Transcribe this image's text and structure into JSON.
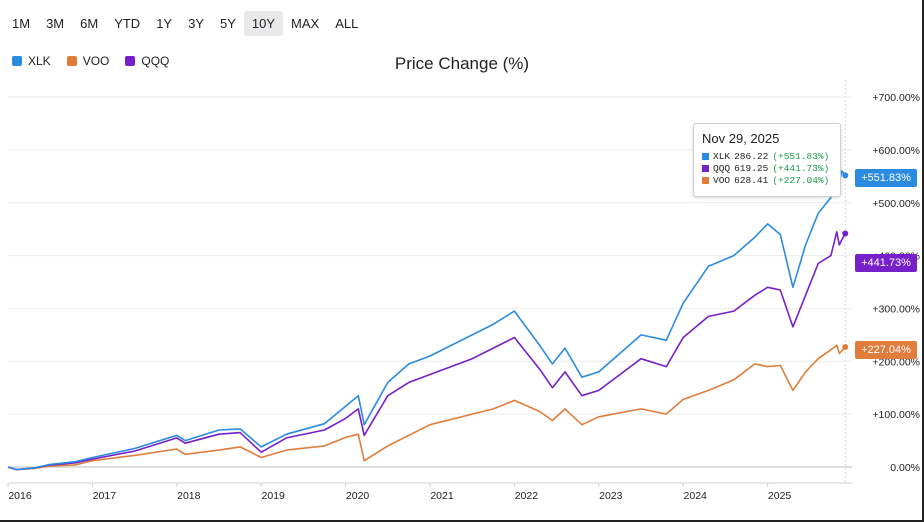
{
  "range_buttons": [
    "1M",
    "3M",
    "6M",
    "YTD",
    "1Y",
    "3Y",
    "5Y",
    "10Y",
    "MAX",
    "ALL"
  ],
  "active_range": "10Y",
  "legend": [
    {
      "name": "XLK",
      "color": "#2a8be0"
    },
    {
      "name": "VOO",
      "color": "#e07d3c"
    },
    {
      "name": "QQQ",
      "color": "#7520c8"
    }
  ],
  "tooltip": {
    "date": "Nov 29, 2025",
    "rows": [
      {
        "ticker": "XLK",
        "price": "286.22",
        "change": "(+551.83%)",
        "color": "#2a8be0"
      },
      {
        "ticker": "QQQ",
        "price": "619.25",
        "change": "(+441.73%)",
        "color": "#7520c8"
      },
      {
        "ticker": "VOO",
        "price": "628.41",
        "change": "(+227.04%)",
        "color": "#e07d3c"
      }
    ]
  },
  "badges": [
    {
      "label": "+551.83%",
      "color": "#2a8be0"
    },
    {
      "label": "+441.73%",
      "color": "#7520c8"
    },
    {
      "label": "+227.04%",
      "color": "#e07d3c"
    }
  ],
  "chart_data": {
    "type": "line",
    "title": "Price Change (%)",
    "xlabel": "",
    "ylabel": "",
    "ylim": [
      -20,
      720
    ],
    "xlim": [
      2016.0,
      2026.0
    ],
    "y_ticks": [
      0,
      100,
      200,
      300,
      400,
      500,
      600,
      700
    ],
    "y_tick_labels": [
      "0.00%",
      "+100.00%",
      "+200.00%",
      "+300.00%",
      "+400.00%",
      "+500.00%",
      "+600.00%",
      "+700.00%"
    ],
    "x_ticks": [
      2016,
      2017,
      2018,
      2019,
      2020,
      2021,
      2022,
      2023,
      2024,
      2025
    ],
    "x_tick_labels": [
      "2016",
      "2017",
      "2018",
      "2019",
      "2020",
      "2021",
      "2022",
      "2023",
      "2024",
      "2025"
    ],
    "series": [
      {
        "name": "VOO",
        "color": "#e07d3c",
        "points": [
          [
            2016.0,
            0
          ],
          [
            2016.1,
            -5
          ],
          [
            2016.3,
            -3
          ],
          [
            2016.5,
            2
          ],
          [
            2016.8,
            4
          ],
          [
            2017.0,
            12
          ],
          [
            2017.5,
            22
          ],
          [
            2018.0,
            34
          ],
          [
            2018.1,
            24
          ],
          [
            2018.5,
            32
          ],
          [
            2018.75,
            38
          ],
          [
            2019.0,
            18
          ],
          [
            2019.3,
            32
          ],
          [
            2019.75,
            40
          ],
          [
            2020.0,
            56
          ],
          [
            2020.15,
            62
          ],
          [
            2020.22,
            12
          ],
          [
            2020.5,
            40
          ],
          [
            2020.75,
            60
          ],
          [
            2021.0,
            80
          ],
          [
            2021.5,
            100
          ],
          [
            2021.75,
            110
          ],
          [
            2022.0,
            126
          ],
          [
            2022.3,
            105
          ],
          [
            2022.45,
            88
          ],
          [
            2022.6,
            110
          ],
          [
            2022.8,
            80
          ],
          [
            2023.0,
            95
          ],
          [
            2023.5,
            110
          ],
          [
            2023.8,
            100
          ],
          [
            2024.0,
            128
          ],
          [
            2024.3,
            145
          ],
          [
            2024.6,
            165
          ],
          [
            2024.85,
            195
          ],
          [
            2025.0,
            190
          ],
          [
            2025.15,
            192
          ],
          [
            2025.3,
            145
          ],
          [
            2025.45,
            180
          ],
          [
            2025.6,
            205
          ],
          [
            2025.75,
            222
          ],
          [
            2025.82,
            230
          ],
          [
            2025.85,
            215
          ],
          [
            2025.88,
            220
          ],
          [
            2025.92,
            227.04
          ]
        ]
      },
      {
        "name": "QQQ",
        "color": "#7520c8",
        "points": [
          [
            2016.0,
            0
          ],
          [
            2016.1,
            -5
          ],
          [
            2016.3,
            -2
          ],
          [
            2016.5,
            4
          ],
          [
            2016.8,
            8
          ],
          [
            2017.0,
            15
          ],
          [
            2017.5,
            30
          ],
          [
            2018.0,
            55
          ],
          [
            2018.1,
            45
          ],
          [
            2018.5,
            62
          ],
          [
            2018.75,
            65
          ],
          [
            2019.0,
            28
          ],
          [
            2019.3,
            55
          ],
          [
            2019.75,
            70
          ],
          [
            2020.0,
            92
          ],
          [
            2020.15,
            110
          ],
          [
            2020.22,
            60
          ],
          [
            2020.5,
            135
          ],
          [
            2020.75,
            160
          ],
          [
            2021.0,
            175
          ],
          [
            2021.5,
            205
          ],
          [
            2021.75,
            225
          ],
          [
            2022.0,
            245
          ],
          [
            2022.3,
            185
          ],
          [
            2022.45,
            150
          ],
          [
            2022.6,
            180
          ],
          [
            2022.8,
            135
          ],
          [
            2023.0,
            145
          ],
          [
            2023.5,
            205
          ],
          [
            2023.8,
            190
          ],
          [
            2024.0,
            245
          ],
          [
            2024.3,
            285
          ],
          [
            2024.6,
            295
          ],
          [
            2024.85,
            325
          ],
          [
            2025.0,
            340
          ],
          [
            2025.15,
            335
          ],
          [
            2025.3,
            265
          ],
          [
            2025.45,
            325
          ],
          [
            2025.6,
            385
          ],
          [
            2025.75,
            400
          ],
          [
            2025.82,
            445
          ],
          [
            2025.85,
            420
          ],
          [
            2025.88,
            430
          ],
          [
            2025.92,
            441.73
          ]
        ]
      },
      {
        "name": "XLK",
        "color": "#2a8be0",
        "points": [
          [
            2016.0,
            0
          ],
          [
            2016.1,
            -5
          ],
          [
            2016.3,
            -2
          ],
          [
            2016.5,
            5
          ],
          [
            2016.8,
            10
          ],
          [
            2017.0,
            18
          ],
          [
            2017.5,
            35
          ],
          [
            2018.0,
            60
          ],
          [
            2018.1,
            50
          ],
          [
            2018.5,
            70
          ],
          [
            2018.75,
            72
          ],
          [
            2019.0,
            38
          ],
          [
            2019.3,
            62
          ],
          [
            2019.75,
            82
          ],
          [
            2020.0,
            115
          ],
          [
            2020.15,
            135
          ],
          [
            2020.22,
            80
          ],
          [
            2020.5,
            160
          ],
          [
            2020.75,
            195
          ],
          [
            2021.0,
            210
          ],
          [
            2021.5,
            250
          ],
          [
            2021.75,
            270
          ],
          [
            2022.0,
            295
          ],
          [
            2022.3,
            230
          ],
          [
            2022.45,
            195
          ],
          [
            2022.6,
            225
          ],
          [
            2022.8,
            170
          ],
          [
            2023.0,
            180
          ],
          [
            2023.5,
            250
          ],
          [
            2023.8,
            240
          ],
          [
            2024.0,
            310
          ],
          [
            2024.3,
            380
          ],
          [
            2024.6,
            400
          ],
          [
            2024.85,
            435
          ],
          [
            2025.0,
            460
          ],
          [
            2025.15,
            440
          ],
          [
            2025.3,
            340
          ],
          [
            2025.45,
            420
          ],
          [
            2025.6,
            480
          ],
          [
            2025.75,
            510
          ],
          [
            2025.82,
            585
          ],
          [
            2025.85,
            540
          ],
          [
            2025.88,
            560
          ],
          [
            2025.92,
            551.83
          ]
        ]
      }
    ]
  }
}
